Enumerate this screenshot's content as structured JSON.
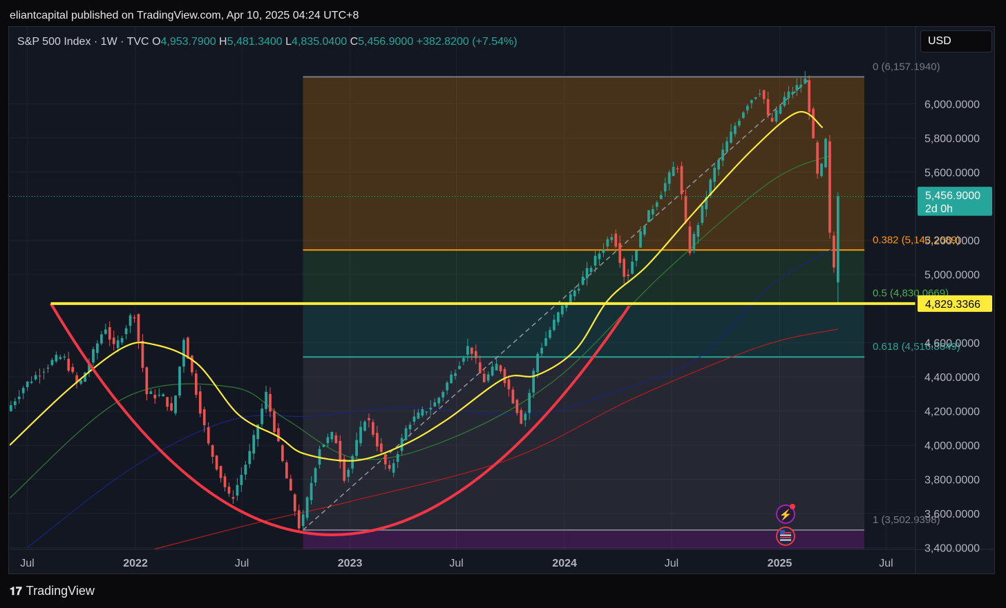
{
  "header": {
    "publisher_line": "eliantcapital published on TradingView.com, Apr 10, 2025 04:24 UTC+8"
  },
  "legend": {
    "symbol": "S&P 500 Index · 1W · TVC",
    "o_label": "O",
    "o_value": "4,953.7900",
    "h_label": "H",
    "h_value": "5,481.3400",
    "l_label": "L",
    "l_value": "4,835.0400",
    "c_label": "C",
    "c_value": "5,456.9000",
    "change": "+382.8200 (+7.54%)"
  },
  "currency": "USD",
  "footer": {
    "brand": "TradingView",
    "logo": "tv-logo-icon"
  },
  "colors": {
    "up": "#26a69a",
    "down": "#ef5350",
    "ma20": "#ffeb3b",
    "ma50": "#2e7d32",
    "ma100": "#1a237e",
    "ma200": "#b71c1c",
    "support": "#ffeb3b",
    "cup": "#f23645",
    "fib_orange": "#ff9800",
    "fib_teal": "#26a69a"
  },
  "chart_data": {
    "type": "candlestick",
    "title": "S&P 500 Index · 1W · TVC",
    "x_axis": {
      "type": "date",
      "range": [
        "2021-06-01",
        "2025-08-20"
      ],
      "ticks": [
        {
          "date": "2021-07-01",
          "label": "Jul",
          "bold": false
        },
        {
          "date": "2022-01-01",
          "label": "2022",
          "bold": true
        },
        {
          "date": "2022-07-01",
          "label": "Jul",
          "bold": false
        },
        {
          "date": "2023-01-01",
          "label": "2023",
          "bold": true
        },
        {
          "date": "2023-07-01",
          "label": "Jul",
          "bold": false
        },
        {
          "date": "2024-01-01",
          "label": "2024",
          "bold": true
        },
        {
          "date": "2024-07-01",
          "label": "Jul",
          "bold": false
        },
        {
          "date": "2025-01-01",
          "label": "2025",
          "bold": true
        },
        {
          "date": "2025-07-01",
          "label": "Jul",
          "bold": false
        }
      ]
    },
    "y_axis": {
      "range": [
        3390,
        6450
      ],
      "ticks": [
        {
          "value": 6000,
          "label": "6,000.0000"
        },
        {
          "value": 5800,
          "label": "5,800.0000"
        },
        {
          "value": 5600,
          "label": "5,600.0000"
        },
        {
          "value": 5200,
          "label": "5,200.0000"
        },
        {
          "value": 5000,
          "label": "5,000.0000"
        },
        {
          "value": 4600,
          "label": "4,600.0000"
        },
        {
          "value": 4400,
          "label": "4,400.0000"
        },
        {
          "value": 4200,
          "label": "4,200.0000"
        },
        {
          "value": 4000,
          "label": "4,000.0000"
        },
        {
          "value": 3800,
          "label": "3,800.0000"
        },
        {
          "value": 3600,
          "label": "3,600.0000"
        },
        {
          "value": 3400,
          "label": "3,400.0000"
        }
      ]
    },
    "price_path": [
      [
        "2021-06-01",
        4200
      ],
      [
        "2021-07-01",
        4350
      ],
      [
        "2021-08-20",
        4500
      ],
      [
        "2021-09-05",
        4520
      ],
      [
        "2021-10-01",
        4340
      ],
      [
        "2021-11-15",
        4700
      ],
      [
        "2021-12-01",
        4560
      ],
      [
        "2022-01-03",
        4790
      ],
      [
        "2022-01-25",
        4300
      ],
      [
        "2022-02-25",
        4280
      ],
      [
        "2022-03-10",
        4170
      ],
      [
        "2022-03-29",
        4630
      ],
      [
        "2022-05-10",
        4000
      ],
      [
        "2022-06-17",
        3670
      ],
      [
        "2022-07-20",
        3960
      ],
      [
        "2022-08-16",
        4300
      ],
      [
        "2022-09-15",
        3870
      ],
      [
        "2022-10-13",
        3500
      ],
      [
        "2022-11-15",
        3990
      ],
      [
        "2022-12-10",
        4070
      ],
      [
        "2022-12-28",
        3800
      ],
      [
        "2023-02-02",
        4180
      ],
      [
        "2023-03-13",
        3830
      ],
      [
        "2023-04-15",
        4130
      ],
      [
        "2023-06-01",
        4250
      ],
      [
        "2023-07-28",
        4590
      ],
      [
        "2023-08-20",
        4370
      ],
      [
        "2023-09-15",
        4480
      ],
      [
        "2023-10-27",
        4120
      ],
      [
        "2023-11-20",
        4530
      ],
      [
        "2023-12-28",
        4780
      ],
      [
        "2024-02-01",
        4950
      ],
      [
        "2024-03-28",
        5250
      ],
      [
        "2024-04-19",
        4960
      ],
      [
        "2024-05-20",
        5300
      ],
      [
        "2024-07-15",
        5660
      ],
      [
        "2024-08-05",
        5130
      ],
      [
        "2024-09-15",
        5600
      ],
      [
        "2024-10-20",
        5860
      ],
      [
        "2024-11-11",
        6000
      ],
      [
        "2024-12-06",
        6090
      ],
      [
        "2024-12-20",
        5870
      ],
      [
        "2025-01-15",
        6040
      ],
      [
        "2025-02-19",
        6140
      ],
      [
        "2025-03-13",
        5520
      ],
      [
        "2025-03-25",
        5780
      ],
      [
        "2025-04-03",
        5070
      ],
      [
        "2025-04-07",
        4835
      ],
      [
        "2025-04-10",
        5456.9
      ]
    ],
    "moving_averages": [
      {
        "name": "MA (yellow)",
        "color": "#ffeb3b",
        "points": [
          [
            "2021-06-01",
            4000
          ],
          [
            "2021-09-10",
            4330
          ],
          [
            "2021-12-10",
            4570
          ],
          [
            "2022-02-01",
            4590
          ],
          [
            "2022-04-15",
            4480
          ],
          [
            "2022-06-25",
            4180
          ],
          [
            "2022-09-01",
            4050
          ],
          [
            "2022-10-15",
            3950
          ],
          [
            "2023-01-10",
            3910
          ],
          [
            "2023-04-01",
            4000
          ],
          [
            "2023-06-15",
            4150
          ],
          [
            "2023-09-20",
            4390
          ],
          [
            "2023-11-15",
            4410
          ],
          [
            "2024-01-20",
            4560
          ],
          [
            "2024-03-15",
            4850
          ],
          [
            "2024-05-20",
            5050
          ],
          [
            "2024-08-10",
            5370
          ],
          [
            "2024-11-15",
            5730
          ],
          [
            "2025-02-01",
            5950
          ],
          [
            "2025-03-15",
            5860
          ]
        ]
      },
      {
        "name": "MA (green)",
        "color": "#2e7d32",
        "points": [
          [
            "2021-06-01",
            3690
          ],
          [
            "2021-12-15",
            4280
          ],
          [
            "2022-06-15",
            4340
          ],
          [
            "2022-09-15",
            4150
          ],
          [
            "2023-01-15",
            3920
          ],
          [
            "2023-06-15",
            4030
          ],
          [
            "2023-12-15",
            4380
          ],
          [
            "2024-06-15",
            5000
          ],
          [
            "2024-12-15",
            5540
          ],
          [
            "2025-03-30",
            5700
          ]
        ]
      },
      {
        "name": "MA (blue)",
        "color": "#1a237e",
        "points": [
          [
            "2021-07-01",
            3400
          ],
          [
            "2022-01-01",
            3880
          ],
          [
            "2022-06-15",
            4150
          ],
          [
            "2022-11-01",
            4170
          ],
          [
            "2023-04-01",
            4220
          ],
          [
            "2023-11-01",
            4180
          ],
          [
            "2024-03-15",
            4300
          ],
          [
            "2024-08-15",
            4510
          ],
          [
            "2024-12-15",
            4930
          ],
          [
            "2025-04-01",
            5150
          ]
        ]
      },
      {
        "name": "MA (red)",
        "color": "#b71c1c",
        "points": [
          [
            "2022-02-01",
            3390
          ],
          [
            "2022-08-01",
            3550
          ],
          [
            "2023-01-01",
            3670
          ],
          [
            "2023-10-01",
            3920
          ],
          [
            "2024-05-01",
            4280
          ],
          [
            "2024-12-01",
            4580
          ],
          [
            "2025-04-10",
            4680
          ]
        ]
      }
    ],
    "fibonacci": [
      {
        "level": "0",
        "price": 6157.194,
        "label": "0 (6,157.1940)",
        "color": "#787b86"
      },
      {
        "level": "0.382",
        "price": 5143.2689,
        "label": "0.382 (5,143.2689)",
        "color": "#ff9800"
      },
      {
        "level": "0.5",
        "price": 4830.0669,
        "label": "0.5 (4,830.0669)",
        "color": "#4caf50"
      },
      {
        "level": "0.618",
        "price": 4516.8649,
        "label": "0.618 (4,516.8649)",
        "color": "#26a69a"
      },
      {
        "level": "1",
        "price": 3502.9398,
        "label": "1 (3,502.9398)",
        "color": "#787b86"
      }
    ],
    "fib_range": {
      "start": "2022-10-13",
      "end": "2025-05-25"
    },
    "trend_line": {
      "from": [
        "2022-10-13",
        3502.94
      ],
      "to": [
        "2025-02-19",
        6140
      ]
    },
    "support_line": {
      "price": 4829.3366,
      "from": "2021-08-10"
    },
    "cup": {
      "left": [
        "2021-08-10",
        4830
      ],
      "bottom": [
        "2022-12-01",
        3475
      ],
      "right": [
        "2024-04-20",
        4815
      ]
    },
    "last_price": {
      "price": 5456.9,
      "label": "5,456.9000",
      "countdown": "2d 0h"
    },
    "support_price_label": "4,829.3366"
  }
}
